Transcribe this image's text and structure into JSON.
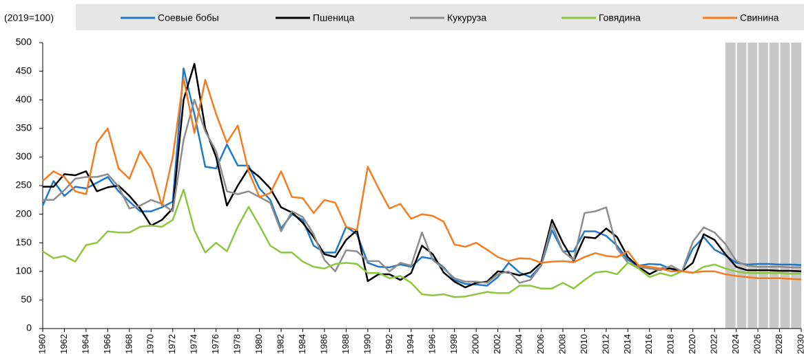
{
  "chart_data": {
    "type": "line",
    "y_label": "(2019=100)",
    "x": [
      1960,
      1961,
      1962,
      1963,
      1964,
      1965,
      1966,
      1967,
      1968,
      1969,
      1970,
      1971,
      1972,
      1973,
      1974,
      1975,
      1976,
      1977,
      1978,
      1979,
      1980,
      1981,
      1982,
      1983,
      1984,
      1985,
      1986,
      1987,
      1988,
      1989,
      1990,
      1991,
      1992,
      1993,
      1994,
      1995,
      1996,
      1997,
      1998,
      1999,
      2000,
      2001,
      2002,
      2003,
      2004,
      2005,
      2006,
      2007,
      2008,
      2009,
      2010,
      2011,
      2012,
      2013,
      2014,
      2015,
      2016,
      2017,
      2018,
      2019,
      2020,
      2021,
      2022,
      2023,
      2024,
      2025,
      2026,
      2027,
      2028,
      2029,
      2030
    ],
    "xlim": [
      1960,
      2030
    ],
    "xticks": [
      1960,
      1962,
      1964,
      1966,
      1968,
      1970,
      1972,
      1974,
      1976,
      1978,
      1980,
      1982,
      1984,
      1986,
      1988,
      1990,
      1992,
      1994,
      1996,
      1998,
      2000,
      2002,
      2004,
      2006,
      2008,
      2010,
      2012,
      2014,
      2016,
      2018,
      2020,
      2022,
      2024,
      2026,
      2028,
      2030
    ],
    "ylim": [
      0,
      500
    ],
    "yticks": [
      0,
      50,
      100,
      150,
      200,
      250,
      300,
      350,
      400,
      450,
      500
    ],
    "projection_from": 2023,
    "series": [
      {
        "name": "Соевые бобы",
        "color": "#1f78c8",
        "values": [
          215,
          258,
          232,
          248,
          245,
          255,
          265,
          240,
          222,
          205,
          205,
          212,
          222,
          455,
          375,
          283,
          280,
          322,
          285,
          285,
          245,
          225,
          175,
          200,
          190,
          145,
          133,
          133,
          178,
          165,
          115,
          108,
          107,
          112,
          108,
          125,
          122,
          107,
          85,
          78,
          77,
          75,
          90,
          115,
          98,
          90,
          110,
          172,
          135,
          135,
          170,
          170,
          162,
          145,
          120,
          110,
          113,
          112,
          104,
          100,
          140,
          160,
          138,
          128,
          115,
          112,
          113,
          113,
          112,
          112,
          111
        ]
      },
      {
        "name": "Пшеница",
        "color": "#000000",
        "values": [
          248,
          248,
          270,
          268,
          275,
          240,
          247,
          250,
          232,
          210,
          180,
          190,
          210,
          400,
          463,
          350,
          300,
          215,
          250,
          280,
          265,
          245,
          212,
          203,
          185,
          160,
          130,
          125,
          155,
          172,
          83,
          95,
          95,
          85,
          97,
          145,
          130,
          98,
          82,
          72,
          80,
          82,
          100,
          98,
          93,
          98,
          115,
          190,
          150,
          118,
          160,
          158,
          175,
          160,
          125,
          108,
          95,
          105,
          105,
          100,
          115,
          165,
          155,
          130,
          108,
          102,
          102,
          102,
          101,
          101,
          100
        ]
      },
      {
        "name": "Кукуруза",
        "color": "#8c8c8c",
        "values": [
          225,
          225,
          242,
          262,
          265,
          265,
          270,
          248,
          210,
          215,
          225,
          218,
          205,
          330,
          400,
          345,
          310,
          240,
          235,
          240,
          230,
          220,
          170,
          205,
          195,
          165,
          120,
          100,
          137,
          135,
          118,
          118,
          100,
          115,
          110,
          168,
          120,
          105,
          88,
          82,
          82,
          80,
          95,
          100,
          80,
          85,
          110,
          182,
          135,
          120,
          202,
          205,
          212,
          140,
          115,
          108,
          105,
          102,
          110,
          100,
          152,
          177,
          168,
          148,
          118,
          110,
          108,
          108,
          108,
          107,
          107
        ]
      },
      {
        "name": "Говядина",
        "color": "#8cc63f",
        "values": [
          135,
          123,
          127,
          117,
          146,
          150,
          170,
          168,
          168,
          178,
          180,
          178,
          190,
          243,
          172,
          133,
          150,
          135,
          178,
          213,
          180,
          145,
          133,
          133,
          117,
          108,
          105,
          113,
          115,
          113,
          97,
          97,
          88,
          92,
          80,
          60,
          58,
          60,
          55,
          56,
          60,
          64,
          62,
          62,
          75,
          75,
          70,
          70,
          80,
          70,
          85,
          98,
          100,
          95,
          115,
          105,
          90,
          97,
          92,
          100,
          97,
          108,
          112,
          105,
          100,
          97,
          97,
          97,
          97,
          96,
          96
        ]
      },
      {
        "name": "Свинина",
        "color": "#f47c20",
        "values": [
          258,
          275,
          265,
          240,
          235,
          325,
          350,
          280,
          262,
          310,
          280,
          215,
          300,
          438,
          342,
          435,
          375,
          325,
          355,
          275,
          230,
          237,
          275,
          230,
          228,
          202,
          225,
          220,
          178,
          172,
          283,
          245,
          210,
          218,
          192,
          200,
          197,
          187,
          147,
          143,
          150,
          138,
          125,
          118,
          123,
          122,
          115,
          117,
          118,
          116,
          125,
          132,
          127,
          125,
          135,
          110,
          108,
          105,
          100,
          100,
          98,
          100,
          100,
          95,
          92,
          90,
          88,
          88,
          88,
          87,
          86
        ]
      }
    ]
  }
}
